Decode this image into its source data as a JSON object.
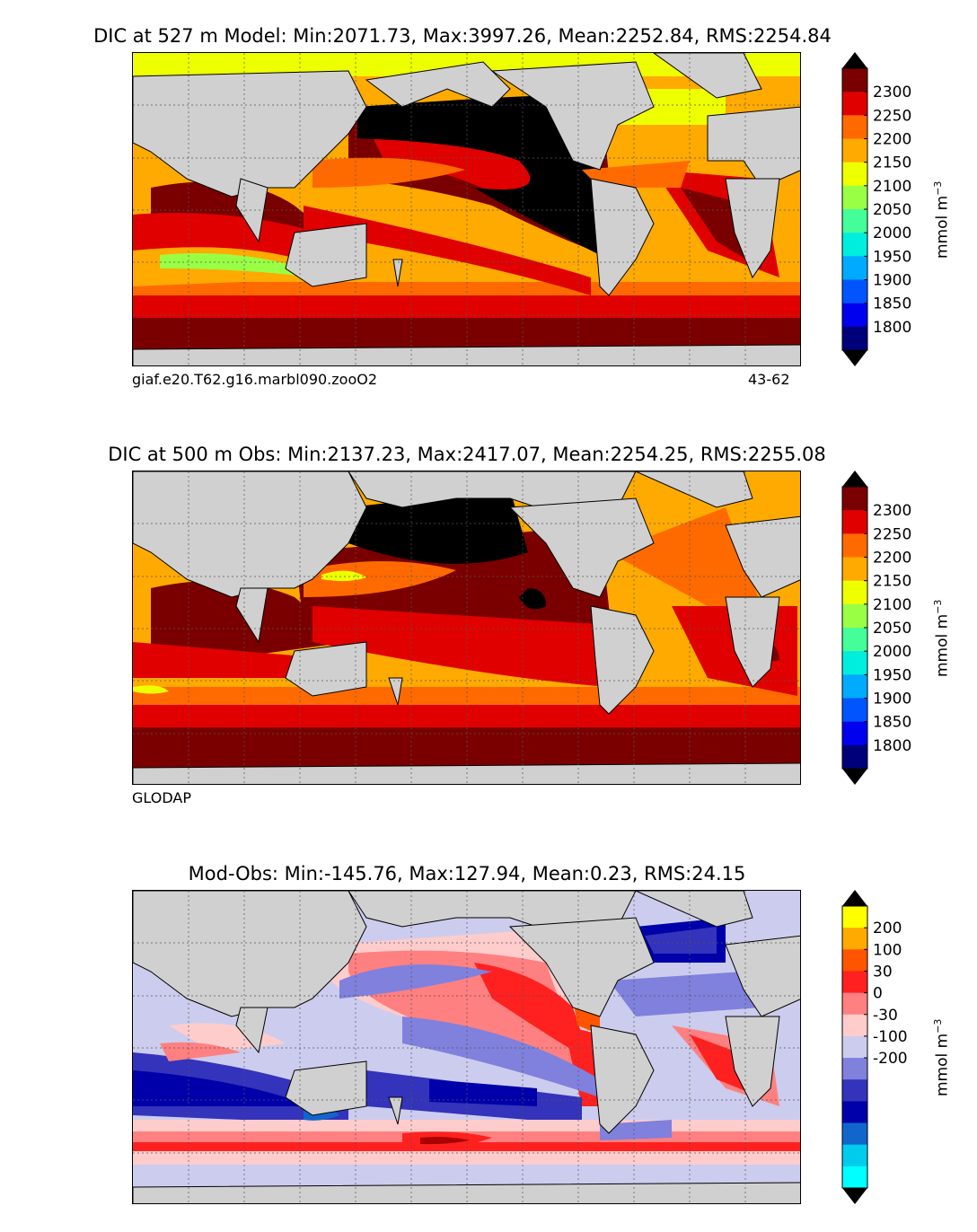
{
  "panels": [
    {
      "id": "model",
      "title": "DIC at 527 m Model: Min:2071.73, Max:3997.26, Mean:2252.84, RMS:2254.84",
      "footer_left": "giaf.e20.T62.g16.marbl090.zooO2",
      "footer_right": "43-62",
      "unit_base": "mmol m",
      "unit_exp": "−3",
      "colorbar": {
        "ticks": [
          "2300",
          "2250",
          "2200",
          "2150",
          "2100",
          "2050",
          "2000",
          "1950",
          "1900",
          "1850",
          "1800"
        ],
        "colors_top_down": [
          "#7a0000",
          "#e00000",
          "#ff6a00",
          "#ffaa00",
          "#eeff00",
          "#99ff44",
          "#44ff99",
          "#00eedd",
          "#00aaff",
          "#0055ff",
          "#0000ee",
          "#00007a"
        ],
        "over_color": "#000000",
        "under_color": "#000000"
      }
    },
    {
      "id": "obs",
      "title": "DIC at 500 m Obs: Min:2137.23, Max:2417.07, Mean:2254.25, RMS:2255.08",
      "footer_left": "GLODAP",
      "footer_right": "",
      "unit_base": "mmol m",
      "unit_exp": "−3",
      "colorbar": {
        "ticks": [
          "2300",
          "2250",
          "2200",
          "2150",
          "2100",
          "2050",
          "2000",
          "1950",
          "1900",
          "1850",
          "1800"
        ],
        "colors_top_down": [
          "#7a0000",
          "#e00000",
          "#ff6a00",
          "#ffaa00",
          "#eeff00",
          "#99ff44",
          "#44ff99",
          "#00eedd",
          "#00aaff",
          "#0055ff",
          "#0000ee",
          "#00007a"
        ],
        "over_color": "#000000",
        "under_color": "#000000"
      }
    },
    {
      "id": "diff",
      "title": "Mod-Obs: Min:-145.76, Max:127.94, Mean:0.23, RMS:24.15",
      "footer_left": "",
      "footer_right": "",
      "unit_base": "mmol m",
      "unit_exp": "−3",
      "colorbar": {
        "ticks": [
          "200",
          "100",
          "30",
          "0",
          "-30",
          "-100",
          "-200"
        ],
        "colors_top_down": [
          "#ffff00",
          "#ffaa00",
          "#ff5500",
          "#ff2020",
          "#ff8080",
          "#ffcccc",
          "#ccccee",
          "#8080dd",
          "#3333bb",
          "#0000aa",
          "#1166cc",
          "#00ccee",
          "#00ffff"
        ],
        "over_color": "#000000",
        "under_color": "#000000"
      }
    }
  ],
  "chart_data": [
    {
      "type": "heatmap",
      "title": "DIC at 527 m Model: Min:2071.73, Max:3997.26, Mean:2252.84, RMS:2254.84",
      "variable": "DIC",
      "depth": "527 m",
      "source": "Model",
      "stats": {
        "min": 2071.73,
        "max": 3997.26,
        "mean": 2252.84,
        "rms": 2254.84
      },
      "units": "mmol m^-3",
      "colorbar_levels": [
        1800,
        1850,
        1900,
        1950,
        2000,
        2050,
        2100,
        2150,
        2200,
        2250,
        2300
      ],
      "xlabel": "",
      "ylabel": ""
    },
    {
      "type": "heatmap",
      "title": "DIC at 500 m Obs: Min:2137.23, Max:2417.07, Mean:2254.25, RMS:2255.08",
      "variable": "DIC",
      "depth": "500 m",
      "source": "GLODAP",
      "stats": {
        "min": 2137.23,
        "max": 2417.07,
        "mean": 2254.25,
        "rms": 2255.08
      },
      "units": "mmol m^-3",
      "colorbar_levels": [
        1800,
        1850,
        1900,
        1950,
        2000,
        2050,
        2100,
        2150,
        2200,
        2250,
        2300
      ],
      "xlabel": "",
      "ylabel": ""
    },
    {
      "type": "heatmap",
      "title": "Mod-Obs: Min:-145.76, Max:127.94, Mean:0.23, RMS:24.15",
      "variable": "DIC difference (Model - Obs)",
      "stats": {
        "min": -145.76,
        "max": 127.94,
        "mean": 0.23,
        "rms": 24.15
      },
      "units": "mmol m^-3",
      "colorbar_levels": [
        -200,
        -100,
        -30,
        0,
        30,
        100,
        200
      ],
      "xlabel": "",
      "ylabel": ""
    }
  ]
}
